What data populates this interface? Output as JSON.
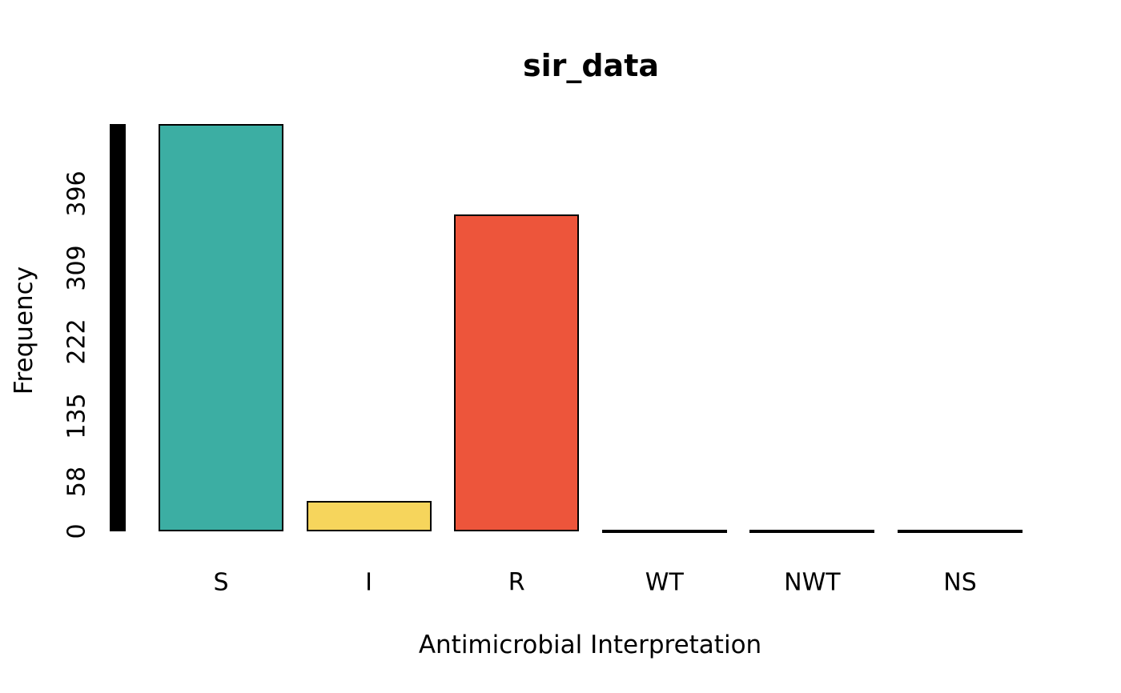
{
  "chart_data": {
    "type": "bar",
    "title": "sir_data",
    "xlabel": "Antimicrobial Interpretation",
    "ylabel": "Frequency",
    "categories": [
      "S",
      "I",
      "R",
      "WT",
      "NWT",
      "NS"
    ],
    "values": [
      478,
      36,
      372,
      0,
      0,
      0
    ],
    "bar_colors": [
      "#3CAEA3",
      "#F6D55C",
      "#ED553B",
      "#000000",
      "#000000",
      "#000000"
    ],
    "bar_border_color": "#000000",
    "yticks": [
      0,
      58,
      135,
      222,
      309,
      396
    ],
    "ylim": [
      0,
      478
    ],
    "grid": false,
    "legend": "none",
    "axis_color": "#000000",
    "background": "#FFFFFF",
    "text_color": "#000000"
  }
}
